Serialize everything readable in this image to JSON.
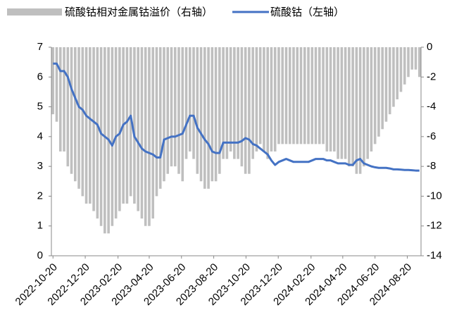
{
  "chart_data": {
    "type": "bar-line",
    "x": [
      "2022-10-20",
      "2022-10-27",
      "2022-11-03",
      "2022-11-10",
      "2022-11-17",
      "2022-11-24",
      "2022-12-01",
      "2022-12-08",
      "2022-12-15",
      "2022-12-22",
      "2022-12-29",
      "2023-01-05",
      "2023-01-12",
      "2023-01-19",
      "2023-01-26",
      "2023-02-02",
      "2023-02-09",
      "2023-02-16",
      "2023-02-23",
      "2023-03-02",
      "2023-03-09",
      "2023-03-16",
      "2023-03-23",
      "2023-03-30",
      "2023-04-06",
      "2023-04-13",
      "2023-04-20",
      "2023-04-27",
      "2023-05-04",
      "2023-05-11",
      "2023-05-18",
      "2023-05-25",
      "2023-06-01",
      "2023-06-08",
      "2023-06-15",
      "2023-06-22",
      "2023-06-29",
      "2023-07-06",
      "2023-07-13",
      "2023-07-20",
      "2023-07-27",
      "2023-08-03",
      "2023-08-10",
      "2023-08-17",
      "2023-08-24",
      "2023-08-31",
      "2023-09-07",
      "2023-09-14",
      "2023-09-21",
      "2023-09-28",
      "2023-10-05",
      "2023-10-12",
      "2023-10-19",
      "2023-10-26",
      "2023-11-02",
      "2023-11-09",
      "2023-11-16",
      "2023-11-23",
      "2023-11-30",
      "2023-12-07",
      "2023-12-14",
      "2023-12-21",
      "2023-12-28",
      "2024-01-04",
      "2024-01-11",
      "2024-01-18",
      "2024-01-25",
      "2024-02-01",
      "2024-02-08",
      "2024-02-15",
      "2024-02-22",
      "2024-02-29",
      "2024-03-07",
      "2024-03-14",
      "2024-03-21",
      "2024-03-28",
      "2024-04-04",
      "2024-04-11",
      "2024-04-18",
      "2024-04-25",
      "2024-05-02",
      "2024-05-09",
      "2024-05-16",
      "2024-05-23",
      "2024-05-30",
      "2024-06-06",
      "2024-06-13",
      "2024-06-20",
      "2024-06-27",
      "2024-07-04",
      "2024-07-11",
      "2024-07-18",
      "2024-07-25",
      "2024-08-01",
      "2024-08-08",
      "2024-08-15",
      "2024-08-22",
      "2024-08-29",
      "2024-09-05",
      "2024-09-12"
    ],
    "series": [
      {
        "name": "硫酸钴相对金属钴溢价（右轴）",
        "type": "bar",
        "axis": "y2",
        "color": "#bfbfbf",
        "values": [
          -4.5,
          -5,
          -7,
          -7,
          -8,
          -8.5,
          -9,
          -9.5,
          -10,
          -10.5,
          -10.5,
          -11,
          -11.5,
          -12,
          -12.5,
          -12.5,
          -12,
          -11.5,
          -11,
          -10.5,
          -10.5,
          -10,
          -10.5,
          -11,
          -11.5,
          -12,
          -12,
          -11.5,
          -10,
          -9.5,
          -9,
          -8.5,
          -8,
          -8,
          -8.5,
          -9,
          -7.5,
          -7,
          -7.5,
          -8.5,
          -9,
          -9.5,
          -9.5,
          -9,
          -9,
          -8.5,
          -7.5,
          -7.5,
          -7,
          -7.5,
          -7.5,
          -8,
          -8.5,
          -8.5,
          -7.5,
          -7,
          -6.5,
          -7,
          -7.5,
          -7,
          -7,
          -6.5,
          -6.5,
          -6.5,
          -6.5,
          -6.5,
          -6.5,
          -6.5,
          -6.5,
          -6.5,
          -6.5,
          -6.5,
          -6.5,
          -6.5,
          -7,
          -7,
          -7,
          -7.5,
          -7.5,
          -7.5,
          -8,
          -8,
          -8.5,
          -8.5,
          -8,
          -7.5,
          -7,
          -6.5,
          -6,
          -5.5,
          -5,
          -4.5,
          -4,
          -3.5,
          -3,
          -2.5,
          -2,
          -1.5,
          -1.5,
          -2
        ]
      },
      {
        "name": "硫酸钴（左轴）",
        "type": "line",
        "color": "#4472c4",
        "values": [
          6.45,
          6.45,
          6.2,
          6.2,
          6.0,
          5.6,
          5.3,
          5.0,
          4.9,
          4.7,
          4.6,
          4.5,
          4.4,
          4.1,
          4.0,
          3.9,
          3.7,
          4.0,
          4.1,
          4.4,
          4.5,
          4.7,
          4.0,
          3.8,
          3.6,
          3.5,
          3.45,
          3.4,
          3.3,
          3.3,
          3.9,
          3.95,
          4.0,
          4.0,
          4.05,
          4.1,
          4.4,
          4.7,
          4.7,
          4.3,
          4.1,
          3.9,
          3.75,
          3.5,
          3.45,
          3.45,
          3.8,
          3.8,
          3.8,
          3.8,
          3.8,
          3.85,
          3.95,
          3.9,
          3.75,
          3.7,
          3.6,
          3.5,
          3.4,
          3.2,
          3.05,
          3.15,
          3.2,
          3.25,
          3.2,
          3.15,
          3.15,
          3.15,
          3.15,
          3.15,
          3.2,
          3.25,
          3.25,
          3.25,
          3.2,
          3.2,
          3.15,
          3.1,
          3.1,
          3.1,
          3.05,
          3.05,
          3.2,
          3.25,
          3.1,
          3.05,
          3.0,
          2.97,
          2.95,
          2.95,
          2.95,
          2.93,
          2.9,
          2.9,
          2.89,
          2.88,
          2.88,
          2.87,
          2.86,
          2.86
        ]
      }
    ],
    "xlim": [
      "2022-10-17",
      "2024-09-15"
    ],
    "xticks": [
      "2022-10-20",
      "2022-12-20",
      "2023-02-20",
      "2023-04-20",
      "2023-06-20",
      "2023-08-20",
      "2023-10-20",
      "2023-12-20",
      "2024-02-20",
      "2024-04-20",
      "2024-06-20",
      "2024-08-20"
    ],
    "ylim": [
      0,
      7
    ],
    "yticks": [
      0,
      1,
      2,
      3,
      4,
      5,
      6,
      7
    ],
    "y2lim": [
      -14,
      0
    ],
    "y2ticks": [
      0,
      -2,
      -4,
      -6,
      -8,
      -10,
      -12,
      -14
    ],
    "legend": "top"
  }
}
